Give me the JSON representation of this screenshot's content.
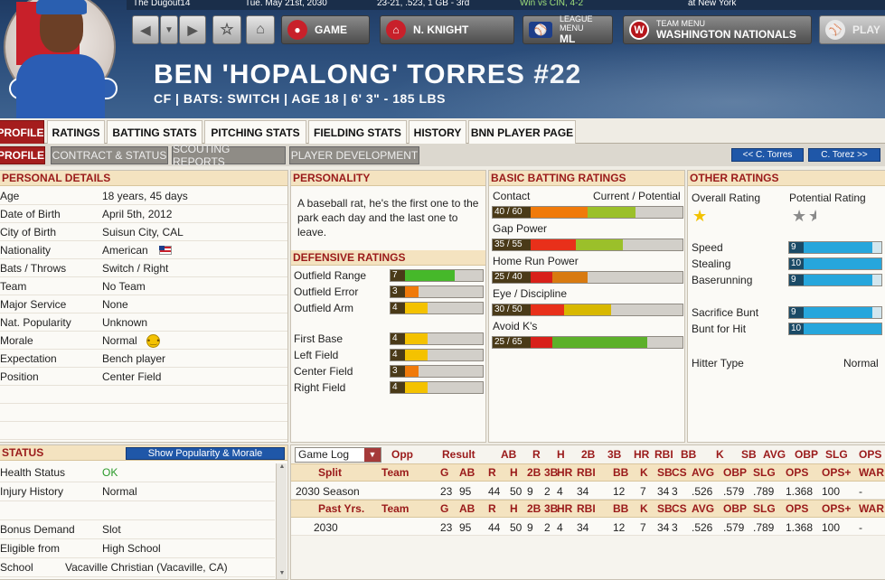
{
  "info_strip": {
    "left": "The Dugout14",
    "date": "Tue. May 21st, 2030",
    "record": "23-21, .523, 1 GB - 3rd",
    "last_game": "Win vs CIN, 4-2",
    "next_game": "at New York"
  },
  "nav": {
    "game_label": "GAME",
    "manager_label": "N. KNIGHT",
    "league_small": "LEAGUE MENU",
    "league_big": "ML",
    "team_small": "TEAM MENU",
    "team_big": "WASHINGTON NATIONALS",
    "play_label": "PLAY"
  },
  "player": {
    "name": "BEN 'HOPALONG' TORRES  #22",
    "line": "CF | BATS: SWITCH | AGE 18 | 6' 3\" - 185 LBS"
  },
  "tabs": [
    "PROFILE",
    "RATINGS",
    "BATTING STATS",
    "PITCHING STATS",
    "FIELDING STATS",
    "HISTORY",
    "BNN PLAYER PAGE"
  ],
  "subtabs": [
    "PROFILE",
    "CONTRACT & STATUS",
    "SCOUTING REPORTS",
    "PLAYER DEVELOPMENT"
  ],
  "prev_player": "<< C. Torres",
  "next_player": "C. Torez >>",
  "personal": {
    "title": "PERSONAL DETAILS",
    "rows": [
      {
        "k": "Age",
        "v": "18 years, 45 days"
      },
      {
        "k": "Date of Birth",
        "v": "April 5th, 2012"
      },
      {
        "k": "City of Birth",
        "v": "Suisun City, CAL"
      },
      {
        "k": "Nationality",
        "v": "American"
      },
      {
        "k": "Bats / Throws",
        "v": "Switch / Right"
      },
      {
        "k": "Team",
        "v": "No Team"
      },
      {
        "k": "Major Service",
        "v": "None"
      },
      {
        "k": "Nat. Popularity",
        "v": "Unknown"
      },
      {
        "k": "Morale",
        "v": "Normal"
      },
      {
        "k": "Expectation",
        "v": "Bench player"
      },
      {
        "k": "Position",
        "v": "Center Field"
      }
    ]
  },
  "personality": {
    "title": "PERSONALITY",
    "text": "A baseball rat, he's the first one to the park each day and the last one to leave."
  },
  "defensive": {
    "title": "DEFENSIVE RATINGS",
    "rows": [
      {
        "label": "Outfield Range",
        "value": 7,
        "color": "#46b82a"
      },
      {
        "label": "Outfield Error",
        "value": 3,
        "color": "#f07a0a"
      },
      {
        "label": "Outfield Arm",
        "value": 4,
        "color": "#f4c200"
      },
      {
        "label": "First Base",
        "value": 4,
        "color": "#f4c200"
      },
      {
        "label": "Left Field",
        "value": 4,
        "color": "#f4c200"
      },
      {
        "label": "Center Field",
        "value": 3,
        "color": "#f07a0a"
      },
      {
        "label": "Right Field",
        "value": 4,
        "color": "#f4c200"
      }
    ]
  },
  "batting": {
    "title": "BASIC BATTING RATINGS",
    "col_header": "Current / Potential",
    "rows": [
      {
        "label": "Contact",
        "current": 40,
        "potential": 60,
        "text": "40 / 60",
        "cur_color": "#f07a0a",
        "pot_color": "#9bc02a"
      },
      {
        "label": "Gap Power",
        "current": 35,
        "potential": 55,
        "text": "35 / 55",
        "cur_color": "#e8301a",
        "pot_color": "#9bc02a"
      },
      {
        "label": "Home Run Power",
        "current": 25,
        "potential": 40,
        "text": "25 / 40",
        "cur_color": "#d8201a",
        "pot_color": "#d87a10"
      },
      {
        "label": "Eye / Discipline",
        "current": 30,
        "potential": 50,
        "text": "30 / 50",
        "cur_color": "#e8301a",
        "pot_color": "#d8b800"
      },
      {
        "label": "Avoid K's",
        "current": 25,
        "potential": 65,
        "text": "25 / 65",
        "cur_color": "#d8201a",
        "pot_color": "#5cb02a"
      }
    ]
  },
  "other": {
    "title": "OTHER RATINGS",
    "overall_label": "Overall Rating",
    "potential_label": "Potential Rating",
    "overall_stars": 1,
    "potential_stars": 1.5,
    "rows": [
      {
        "label": "Speed",
        "value": 9
      },
      {
        "label": "Stealing",
        "value": 10
      },
      {
        "label": "Baserunning",
        "value": 9
      },
      {
        "label": "Sacrifice Bunt",
        "value": 9
      },
      {
        "label": "Bunt for Hit",
        "value": 10
      }
    ],
    "hitter_type_label": "Hitter Type",
    "hitter_type": "Normal"
  },
  "status": {
    "title": "STATUS",
    "button": "Show Popularity & Morale",
    "rows": [
      {
        "k": "Health Status",
        "v": "OK"
      },
      {
        "k": "Injury History",
        "v": "Normal"
      },
      {
        "k": "",
        "v": ""
      },
      {
        "k": "Bonus Demand",
        "v": "Slot"
      },
      {
        "k": "Eligible from",
        "v": "High School"
      },
      {
        "k": "School",
        "v": "Vacaville Christian (Vacaville, CA)"
      }
    ]
  },
  "gamelog": {
    "select": "Game Log",
    "headers": [
      "Opp",
      "Result",
      "AB",
      "R",
      "H",
      "2B",
      "3B",
      "HR",
      "RBI",
      "BB",
      "K",
      "SB",
      "AVG",
      "OBP",
      "SLG",
      "OPS"
    ],
    "split_headers": [
      "Split",
      "Team",
      "G",
      "AB",
      "R",
      "H",
      "2B",
      "3B",
      "HR",
      "RBI",
      "BB",
      "K",
      "SB",
      "CS",
      "AVG",
      "OBP",
      "SLG",
      "OPS",
      "OPS+",
      "WAR"
    ],
    "season_row": [
      "2030 Season",
      "",
      "23",
      "95",
      "44",
      "50",
      "9",
      "2",
      "4",
      "34",
      "12",
      "7",
      "34",
      "3",
      ".526",
      ".579",
      ".789",
      "1.368",
      "100",
      "-"
    ],
    "past_headers": [
      "Past Yrs.",
      "Team",
      "G",
      "AB",
      "R",
      "H",
      "2B",
      "3B",
      "HR",
      "RBI",
      "BB",
      "K",
      "SB",
      "CS",
      "AVG",
      "OBP",
      "SLG",
      "OPS",
      "OPS+",
      "WAR"
    ],
    "past_row": [
      "2030",
      "",
      "23",
      "95",
      "44",
      "50",
      "9",
      "2",
      "4",
      "34",
      "12",
      "7",
      "34",
      "3",
      ".526",
      ".579",
      ".789",
      "1.368",
      "100",
      "-"
    ]
  }
}
